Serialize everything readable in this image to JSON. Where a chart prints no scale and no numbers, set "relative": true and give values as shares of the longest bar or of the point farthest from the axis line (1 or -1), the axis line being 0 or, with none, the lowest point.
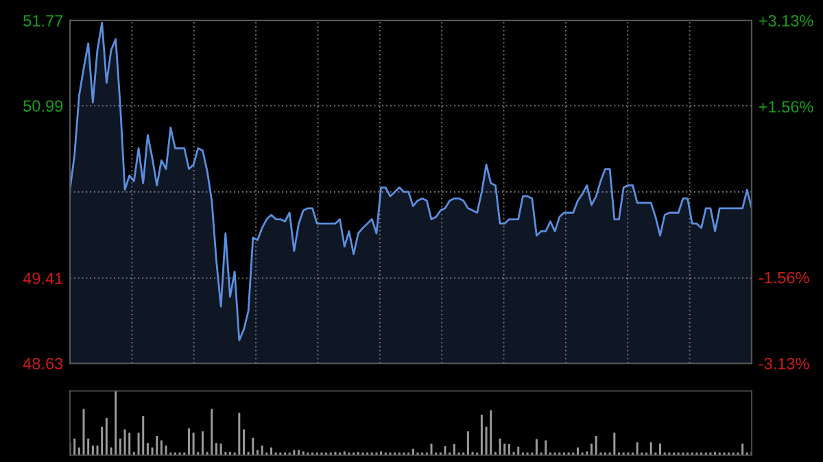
{
  "chart_data": [
    {
      "type": "area",
      "tick_labels": "y",
      "grid": true,
      "categories": [
        null,
        null,
        null,
        null,
        null,
        null,
        null,
        null,
        null,
        null,
        null,
        null,
        null,
        null,
        null,
        null,
        null,
        null,
        null,
        null,
        null,
        null,
        null,
        null,
        null,
        null,
        null,
        null,
        null,
        null,
        null,
        null,
        null,
        null,
        null,
        null,
        null,
        null,
        null,
        null,
        null,
        null,
        null,
        null,
        null,
        null,
        null,
        null,
        null,
        null,
        null,
        null,
        null,
        null,
        null,
        null,
        null,
        null,
        null,
        null,
        null,
        null,
        null,
        null,
        null,
        null,
        null,
        null,
        null,
        null,
        null,
        null,
        null,
        null,
        null,
        null,
        null,
        null,
        null,
        null,
        null,
        null,
        null,
        null,
        null,
        null,
        null,
        null,
        null,
        null,
        null,
        null,
        null,
        null,
        null,
        null,
        null,
        null,
        null,
        null,
        null,
        null,
        null,
        null,
        null,
        null,
        null,
        null,
        null,
        null,
        null,
        null,
        null,
        null,
        null,
        null,
        null,
        null,
        null,
        null,
        null,
        null,
        null,
        null,
        null,
        null,
        null,
        null,
        null,
        null,
        null,
        null,
        null,
        null,
        null,
        null,
        null,
        null,
        null,
        null,
        null,
        null,
        null,
        null,
        null,
        null,
        null,
        null,
        null,
        null
      ],
      "series": [
        {
          "color": "#5b8fe0",
          "values": [
            50.22,
            50.54,
            51.08,
            51.33,
            51.56,
            51.02,
            51.5,
            51.75,
            51.2,
            51.5,
            51.6,
            50.99,
            50.22,
            50.35,
            50.3,
            50.6,
            50.28,
            50.72,
            50.51,
            50.26,
            50.49,
            50.41,
            50.79,
            50.6,
            50.6,
            50.6,
            50.41,
            50.45,
            50.6,
            50.58,
            50.39,
            50.12,
            49.57,
            49.15,
            49.82,
            49.24,
            49.47,
            48.84,
            48.94,
            49.11,
            49.78,
            49.76,
            49.87,
            49.95,
            49.99,
            49.95,
            49.95,
            49.93,
            50.01,
            49.66,
            49.91,
            50.03,
            50.05,
            50.05,
            49.91,
            49.91,
            49.91,
            49.91,
            49.91,
            49.95,
            49.7,
            49.84,
            49.63,
            49.82,
            49.87,
            49.91,
            49.95,
            49.82,
            50.24,
            50.24,
            50.16,
            50.2,
            50.24,
            50.2,
            50.2,
            50.07,
            50.12,
            50.14,
            50.12,
            49.95,
            49.97,
            50.03,
            50.05,
            50.12,
            50.14,
            50.14,
            50.12,
            50.05,
            50.03,
            50.01,
            50.2,
            50.45,
            50.28,
            50.26,
            49.91,
            49.91,
            49.95,
            49.95,
            49.95,
            50.16,
            50.16,
            50.14,
            49.8,
            49.84,
            49.84,
            49.93,
            49.84,
            49.97,
            50.01,
            50.01,
            50.01,
            50.12,
            50.18,
            50.26,
            50.08,
            50.16,
            50.3,
            50.41,
            50.41,
            49.95,
            49.95,
            50.24,
            50.26,
            50.26,
            50.1,
            50.1,
            50.1,
            50.1,
            49.97,
            49.8,
            49.99,
            50.01,
            50.01,
            50.01,
            50.14,
            50.14,
            49.91,
            49.91,
            49.87,
            50.05,
            50.05,
            49.84,
            50.05,
            50.05,
            50.05,
            50.05,
            50.05,
            50.05,
            50.22,
            50.05
          ]
        }
      ],
      "ylim": [
        48.63,
        51.77
      ],
      "yticks": [
        48.63,
        49.41,
        {
          "value": 50.2,
          "label": null
        },
        50.99,
        51.77
      ],
      "y2lim": [
        -3.13,
        3.13
      ],
      "y2ticks": [
        {
          "value": -3.13,
          "label": "-3.13%"
        },
        {
          "value": -1.56,
          "label": "-1.56%"
        },
        {
          "value": 1.56,
          "label": "+1.56%"
        },
        {
          "value": 3.13,
          "label": "+3.13%"
        }
      ]
    },
    {
      "type": "bar",
      "relative": true,
      "tick_labels": false,
      "categories": [
        null,
        null,
        null,
        null,
        null,
        null,
        null,
        null,
        null,
        null,
        null,
        null,
        null,
        null,
        null,
        null,
        null,
        null,
        null,
        null,
        null,
        null,
        null,
        null,
        null,
        null,
        null,
        null,
        null,
        null,
        null,
        null,
        null,
        null,
        null,
        null,
        null,
        null,
        null,
        null,
        null,
        null,
        null,
        null,
        null,
        null,
        null,
        null,
        null,
        null,
        null,
        null,
        null,
        null,
        null,
        null,
        null,
        null,
        null,
        null,
        null,
        null,
        null,
        null,
        null,
        null,
        null,
        null,
        null,
        null,
        null,
        null,
        null,
        null,
        null,
        null,
        null,
        null,
        null,
        null,
        null,
        null,
        null,
        null,
        null,
        null,
        null,
        null,
        null,
        null,
        null,
        null,
        null,
        null,
        null,
        null,
        null,
        null,
        null,
        null,
        null,
        null,
        null,
        null,
        null,
        null,
        null,
        null,
        null,
        null,
        null,
        null,
        null,
        null,
        null,
        null,
        null,
        null,
        null,
        null,
        null,
        null,
        null,
        null,
        null,
        null,
        null,
        null,
        null,
        null,
        null,
        null,
        null,
        null,
        null,
        null,
        null,
        null,
        null,
        null,
        null,
        null,
        null,
        null,
        null,
        null,
        null,
        null,
        null,
        null
      ],
      "series": [
        {
          "color": "#9a9a9a",
          "values": [
            0.19,
            0.26,
            0.12,
            0.72,
            0.26,
            0.15,
            0.15,
            0.44,
            0.58,
            0.12,
            1.0,
            0.26,
            0.4,
            0.35,
            0.05,
            0.35,
            0.61,
            0.19,
            0.12,
            0.3,
            0.23,
            0.15,
            0.04,
            0.04,
            0.04,
            0.04,
            0.42,
            0.35,
            0.05,
            0.37,
            0.05,
            0.72,
            0.19,
            0.18,
            0.05,
            0.05,
            0.04,
            0.66,
            0.4,
            0.05,
            0.27,
            0.08,
            0.15,
            0.04,
            0.12,
            0.04,
            0.04,
            0.04,
            0.04,
            0.08,
            0.08,
            0.06,
            0.04,
            0.04,
            0.04,
            0.04,
            0.04,
            0.04,
            0.05,
            0.04,
            0.06,
            0.04,
            0.04,
            0.05,
            0.04,
            0.04,
            0.04,
            0.04,
            0.06,
            0.04,
            0.04,
            0.04,
            0.04,
            0.04,
            0.04,
            0.1,
            0.04,
            0.04,
            0.04,
            0.18,
            0.04,
            0.04,
            0.14,
            0.04,
            0.17,
            0.04,
            0.04,
            0.37,
            0.05,
            0.04,
            0.63,
            0.44,
            0.7,
            0.05,
            0.26,
            0.18,
            0.17,
            0.05,
            0.13,
            0.04,
            0.04,
            0.04,
            0.25,
            0.04,
            0.23,
            0.04,
            0.04,
            0.04,
            0.04,
            0.04,
            0.04,
            0.12,
            0.04,
            0.06,
            0.18,
            0.3,
            0.04,
            0.04,
            0.04,
            0.35,
            0.04,
            0.04,
            0.04,
            0.04,
            0.2,
            0.04,
            0.04,
            0.2,
            0.04,
            0.18,
            0.04,
            0.04,
            0.04,
            0.04,
            0.04,
            0.04,
            0.04,
            0.04,
            0.04,
            0.04,
            0.04,
            0.05,
            0.04,
            0.04,
            0.04,
            0.04,
            0.04,
            0.18,
            0.04,
            0.05
          ]
        }
      ]
    }
  ]
}
